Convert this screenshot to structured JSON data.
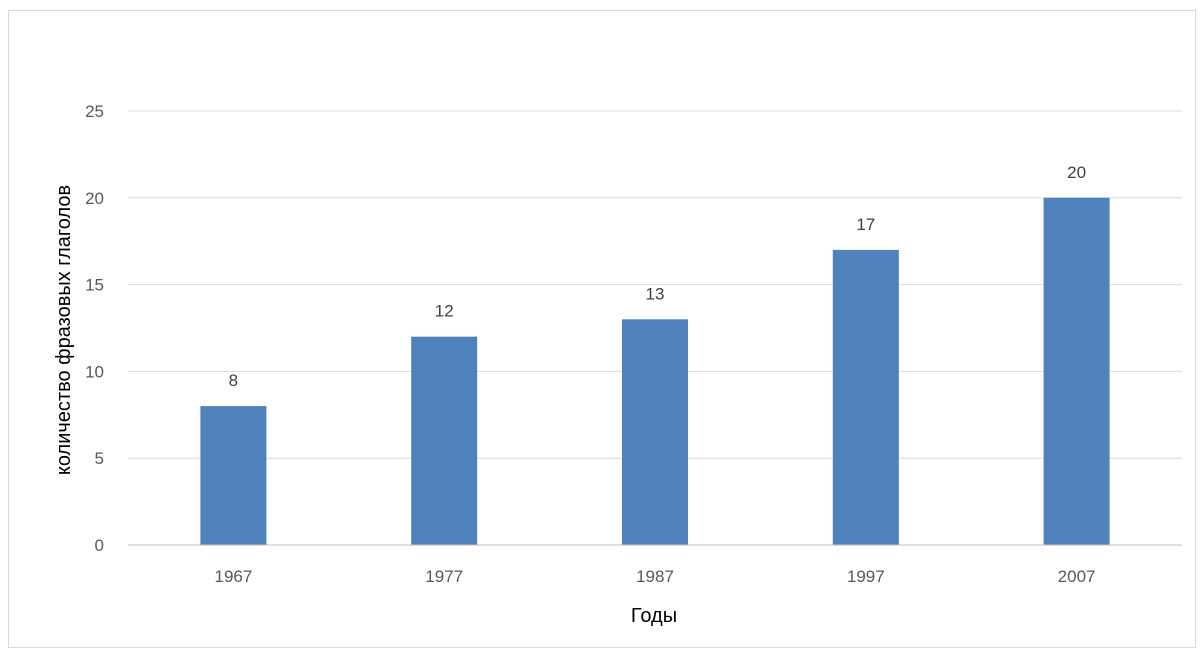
{
  "chart_data": {
    "type": "bar",
    "categories": [
      "1967",
      "1977",
      "1987",
      "1997",
      "2007"
    ],
    "values": [
      8,
      12,
      13,
      17,
      20
    ],
    "title": "",
    "xlabel": "Годы",
    "ylabel": "количество фразовых глаголов",
    "ylim": [
      0,
      25
    ],
    "yticks": [
      0,
      5,
      10,
      15,
      20,
      25
    ],
    "grid": true,
    "legend": "none",
    "data_labels": true
  },
  "colors": {
    "bar": "#4f81bd",
    "grid": "#d9d9d9",
    "axis": "#bfbfbf"
  }
}
